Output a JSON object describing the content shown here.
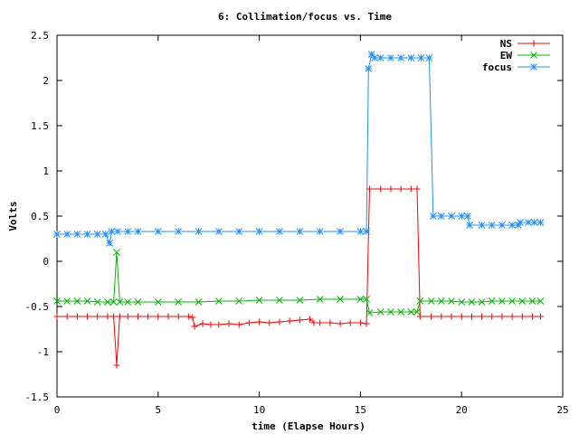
{
  "chart_data": {
    "type": "line",
    "title": "6: Collimation/focus vs. Time",
    "xlabel": "time (Elapse Hours)",
    "ylabel": "Volts",
    "xlim": [
      0,
      25
    ],
    "ylim": [
      -1.5,
      2.5
    ],
    "xticks": [
      0,
      5,
      10,
      15,
      20,
      25
    ],
    "xtick_labels": [
      "0",
      "5",
      "10",
      "15",
      "20",
      "25"
    ],
    "yticks": [
      -1.5,
      -1,
      -0.5,
      0,
      0.5,
      1,
      1.5,
      2,
      2.5
    ],
    "ytick_labels": [
      "-1.5",
      "-1",
      "-0.5",
      "0",
      "0.5",
      "1",
      "1.5",
      "2",
      "2.5"
    ],
    "grid": false,
    "legend_position": "top-right",
    "series": [
      {
        "name": "NS",
        "color": "#ff0000",
        "marker": "plus",
        "points": [
          [
            0,
            -0.61
          ],
          [
            0.5,
            -0.61
          ],
          [
            1.0,
            -0.61
          ],
          [
            1.5,
            -0.61
          ],
          [
            2.0,
            -0.61
          ],
          [
            2.5,
            -0.61
          ],
          [
            2.8,
            -0.61
          ],
          [
            2.95,
            -1.15
          ],
          [
            3.1,
            -0.61
          ],
          [
            3.5,
            -0.61
          ],
          [
            4.0,
            -0.61
          ],
          [
            4.5,
            -0.61
          ],
          [
            5.0,
            -0.61
          ],
          [
            5.5,
            -0.61
          ],
          [
            6.0,
            -0.61
          ],
          [
            6.5,
            -0.61
          ],
          [
            6.7,
            -0.62
          ],
          [
            6.8,
            -0.72
          ],
          [
            7.2,
            -0.69
          ],
          [
            7.6,
            -0.7
          ],
          [
            8.0,
            -0.7
          ],
          [
            8.5,
            -0.69
          ],
          [
            9.0,
            -0.7
          ],
          [
            9.5,
            -0.68
          ],
          [
            10.0,
            -0.67
          ],
          [
            10.5,
            -0.68
          ],
          [
            11.0,
            -0.67
          ],
          [
            11.5,
            -0.66
          ],
          [
            12.0,
            -0.65
          ],
          [
            12.5,
            -0.64
          ],
          [
            12.7,
            -0.68
          ],
          [
            13.0,
            -0.68
          ],
          [
            13.5,
            -0.68
          ],
          [
            14.0,
            -0.69
          ],
          [
            14.5,
            -0.68
          ],
          [
            15.0,
            -0.68
          ],
          [
            15.3,
            -0.69
          ],
          [
            15.45,
            0.8
          ],
          [
            16.0,
            0.8
          ],
          [
            16.5,
            0.8
          ],
          [
            17.0,
            0.8
          ],
          [
            17.5,
            0.8
          ],
          [
            17.8,
            0.8
          ],
          [
            17.95,
            -0.61
          ],
          [
            18.5,
            -0.61
          ],
          [
            19.0,
            -0.61
          ],
          [
            19.5,
            -0.61
          ],
          [
            20.0,
            -0.61
          ],
          [
            20.5,
            -0.61
          ],
          [
            21.0,
            -0.61
          ],
          [
            21.5,
            -0.61
          ],
          [
            22.0,
            -0.61
          ],
          [
            22.5,
            -0.61
          ],
          [
            23.0,
            -0.61
          ],
          [
            23.5,
            -0.61
          ],
          [
            23.9,
            -0.61
          ]
        ]
      },
      {
        "name": "EW",
        "color": "#00bb00",
        "marker": "cross",
        "points": [
          [
            0,
            -0.44
          ],
          [
            0.5,
            -0.44
          ],
          [
            1.0,
            -0.44
          ],
          [
            1.5,
            -0.44
          ],
          [
            2.0,
            -0.45
          ],
          [
            2.5,
            -0.45
          ],
          [
            2.8,
            -0.45
          ],
          [
            2.95,
            0.1
          ],
          [
            3.1,
            -0.45
          ],
          [
            3.5,
            -0.45
          ],
          [
            4.0,
            -0.45
          ],
          [
            5.0,
            -0.45
          ],
          [
            6.0,
            -0.45
          ],
          [
            7.0,
            -0.45
          ],
          [
            8.0,
            -0.44
          ],
          [
            9.0,
            -0.44
          ],
          [
            10.0,
            -0.43
          ],
          [
            11.0,
            -0.43
          ],
          [
            12.0,
            -0.43
          ],
          [
            13.0,
            -0.42
          ],
          [
            14.0,
            -0.42
          ],
          [
            15.0,
            -0.42
          ],
          [
            15.3,
            -0.42
          ],
          [
            15.45,
            -0.57
          ],
          [
            16.0,
            -0.56
          ],
          [
            16.5,
            -0.56
          ],
          [
            17.0,
            -0.56
          ],
          [
            17.5,
            -0.56
          ],
          [
            17.8,
            -0.56
          ],
          [
            17.95,
            -0.44
          ],
          [
            18.5,
            -0.44
          ],
          [
            19.0,
            -0.44
          ],
          [
            19.5,
            -0.44
          ],
          [
            20.0,
            -0.45
          ],
          [
            20.5,
            -0.45
          ],
          [
            21.0,
            -0.45
          ],
          [
            21.5,
            -0.44
          ],
          [
            22.0,
            -0.44
          ],
          [
            22.5,
            -0.44
          ],
          [
            23.0,
            -0.44
          ],
          [
            23.5,
            -0.44
          ],
          [
            23.9,
            -0.44
          ]
        ]
      },
      {
        "name": "focus",
        "color": "#1e90ff",
        "marker": "star",
        "points": [
          [
            0,
            0.3
          ],
          [
            0.5,
            0.3
          ],
          [
            1.0,
            0.3
          ],
          [
            1.5,
            0.3
          ],
          [
            2.0,
            0.3
          ],
          [
            2.4,
            0.3
          ],
          [
            2.6,
            0.2
          ],
          [
            2.7,
            0.33
          ],
          [
            3.0,
            0.33
          ],
          [
            3.5,
            0.33
          ],
          [
            4.0,
            0.33
          ],
          [
            5.0,
            0.33
          ],
          [
            6.0,
            0.33
          ],
          [
            7.0,
            0.33
          ],
          [
            8.0,
            0.33
          ],
          [
            9.0,
            0.33
          ],
          [
            10.0,
            0.33
          ],
          [
            11.0,
            0.33
          ],
          [
            12.0,
            0.33
          ],
          [
            13.0,
            0.33
          ],
          [
            14.0,
            0.33
          ],
          [
            15.0,
            0.33
          ],
          [
            15.3,
            0.33
          ],
          [
            15.4,
            2.13
          ],
          [
            15.55,
            2.29
          ],
          [
            15.7,
            2.25
          ],
          [
            16.0,
            2.25
          ],
          [
            16.5,
            2.25
          ],
          [
            17.0,
            2.25
          ],
          [
            17.5,
            2.25
          ],
          [
            18.0,
            2.25
          ],
          [
            18.4,
            2.25
          ],
          [
            18.6,
            0.5
          ],
          [
            19.0,
            0.5
          ],
          [
            19.5,
            0.5
          ],
          [
            20.0,
            0.5
          ],
          [
            20.3,
            0.5
          ],
          [
            20.4,
            0.4
          ],
          [
            21.0,
            0.4
          ],
          [
            21.5,
            0.4
          ],
          [
            22.0,
            0.4
          ],
          [
            22.5,
            0.4
          ],
          [
            22.8,
            0.4
          ],
          [
            22.9,
            0.43
          ],
          [
            23.3,
            0.43
          ],
          [
            23.6,
            0.43
          ],
          [
            23.9,
            0.43
          ]
        ]
      }
    ]
  }
}
